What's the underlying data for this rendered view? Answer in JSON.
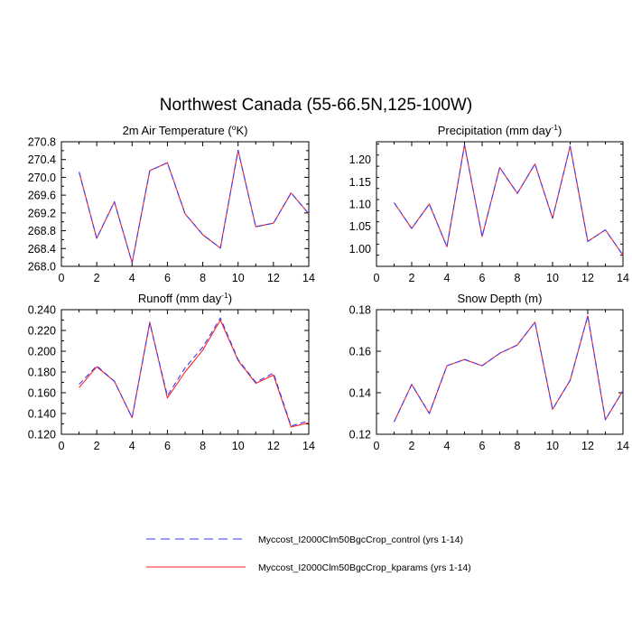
{
  "title": "Northwest Canada (55-66.5N,125-100W)",
  "colors": {
    "control": "#3a3aff",
    "kparams": "#ff2020",
    "axis": "#000000"
  },
  "legend": [
    {
      "key": "control",
      "label": "Myccost_I2000Clm50BgcCrop_control (yrs 1-14)",
      "style": "dashed"
    },
    {
      "key": "kparams",
      "label": "Myccost_I2000Clm50BgcCrop_kparams (yrs 1-14)",
      "style": "solid"
    }
  ],
  "chart_data": [
    {
      "type": "line",
      "title_pre": "2m Air Temperature (",
      "title_sup": "o",
      "title_post": "K)",
      "xlim": [
        0,
        14
      ],
      "ylim": [
        268.0,
        270.8
      ],
      "xticks": [
        "0",
        "2",
        "4",
        "6",
        "8",
        "10",
        "12",
        "14"
      ],
      "yticks": [
        "268.0",
        "268.4",
        "268.8",
        "269.2",
        "269.6",
        "270.0",
        "270.4",
        "270.8"
      ],
      "x": [
        1,
        2,
        3,
        4,
        5,
        6,
        7,
        8,
        9,
        10,
        11,
        12,
        13,
        14
      ],
      "series": [
        {
          "name": "control",
          "values": [
            270.12,
            268.63,
            269.45,
            268.08,
            270.15,
            270.33,
            269.18,
            268.71,
            268.41,
            270.61,
            268.89,
            268.97,
            269.65,
            269.18
          ]
        },
        {
          "name": "kparams",
          "values": [
            270.12,
            268.63,
            269.45,
            268.08,
            270.15,
            270.33,
            269.18,
            268.71,
            268.41,
            270.61,
            268.89,
            268.97,
            269.65,
            269.18
          ]
        }
      ]
    },
    {
      "type": "line",
      "title_pre": "Precipitation (mm day",
      "title_sup": "-1",
      "title_post": ")",
      "xlim": [
        0,
        14
      ],
      "ylim": [
        0.96,
        1.24
      ],
      "xticks": [
        "0",
        "2",
        "4",
        "6",
        "8",
        "10",
        "12",
        "14"
      ],
      "yticks": [
        "1.00",
        "1.05",
        "1.10",
        "1.15",
        "1.20"
      ],
      "x": [
        1,
        2,
        3,
        4,
        5,
        6,
        7,
        8,
        9,
        10,
        11,
        12,
        13,
        14
      ],
      "series": [
        {
          "name": "control",
          "values": [
            1.103,
            1.045,
            1.1,
            1.004,
            1.233,
            1.027,
            1.182,
            1.124,
            1.19,
            1.068,
            1.23,
            1.016,
            1.042,
            0.985
          ]
        },
        {
          "name": "kparams",
          "values": [
            1.103,
            1.045,
            1.1,
            1.004,
            1.233,
            1.027,
            1.182,
            1.124,
            1.19,
            1.068,
            1.23,
            1.016,
            1.042,
            0.985
          ]
        }
      ]
    },
    {
      "type": "line",
      "title_pre": "Runoff (mm day",
      "title_sup": "-1",
      "title_post": ")",
      "xlim": [
        0,
        14
      ],
      "ylim": [
        0.12,
        0.24
      ],
      "xticks": [
        "0",
        "2",
        "4",
        "6",
        "8",
        "10",
        "12",
        "14"
      ],
      "yticks": [
        "0.120",
        "0.140",
        "0.160",
        "0.180",
        "0.200",
        "0.220",
        "0.240"
      ],
      "x": [
        1,
        2,
        3,
        4,
        5,
        6,
        7,
        8,
        9,
        10,
        11,
        12,
        13,
        14
      ],
      "series": [
        {
          "name": "control",
          "values": [
            0.168,
            0.186,
            0.171,
            0.136,
            0.227,
            0.157,
            0.184,
            0.204,
            0.232,
            0.192,
            0.17,
            0.179,
            0.128,
            0.133
          ]
        },
        {
          "name": "kparams",
          "values": [
            0.165,
            0.185,
            0.171,
            0.136,
            0.228,
            0.155,
            0.18,
            0.201,
            0.23,
            0.191,
            0.169,
            0.177,
            0.127,
            0.131
          ]
        }
      ]
    },
    {
      "type": "line",
      "title_pre": "Snow Depth (m)",
      "title_sup": "",
      "title_post": "",
      "xlim": [
        0,
        14
      ],
      "ylim": [
        0.12,
        0.18
      ],
      "xticks": [
        "0",
        "2",
        "4",
        "6",
        "8",
        "10",
        "12",
        "14"
      ],
      "yticks": [
        "0.12",
        "0.14",
        "0.16",
        "0.18"
      ],
      "x": [
        1,
        2,
        3,
        4,
        5,
        6,
        7,
        8,
        9,
        10,
        11,
        12,
        13,
        14
      ],
      "series": [
        {
          "name": "control",
          "values": [
            0.126,
            0.144,
            0.13,
            0.153,
            0.156,
            0.153,
            0.159,
            0.163,
            0.174,
            0.132,
            0.146,
            0.177,
            0.127,
            0.141
          ]
        },
        {
          "name": "kparams",
          "values": [
            0.126,
            0.144,
            0.13,
            0.153,
            0.156,
            0.153,
            0.159,
            0.163,
            0.174,
            0.132,
            0.146,
            0.177,
            0.127,
            0.141
          ]
        }
      ]
    }
  ]
}
